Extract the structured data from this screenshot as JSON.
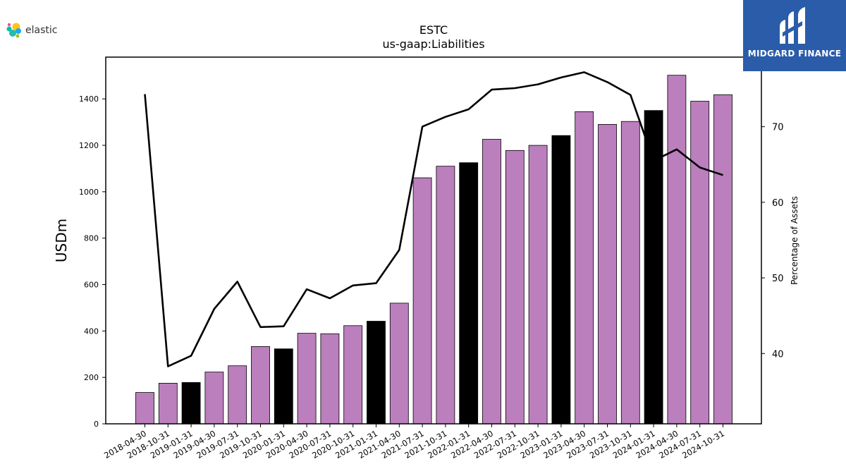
{
  "brand_left": {
    "name": "elastic"
  },
  "brand_right": {
    "name": "MIDGARD FINANCE"
  },
  "chart_data": {
    "type": "bar",
    "title": "ESTC",
    "subtitle": "us-gaap:Liabilities",
    "ylabel": "USDm",
    "y2label": "Percentage of Assets",
    "ylim": [
      0,
      1580
    ],
    "y2lim": [
      30.7,
      79.2
    ],
    "yticks": [
      0,
      200,
      400,
      600,
      800,
      1000,
      1200,
      1400
    ],
    "y2ticks": [
      40,
      50,
      60,
      70
    ],
    "categories": [
      "2018-04-30",
      "2018-10-31",
      "2019-01-31",
      "2019-04-30",
      "2019-07-31",
      "2019-10-31",
      "2020-01-31",
      "2020-04-30",
      "2020-07-31",
      "2020-10-31",
      "2021-01-31",
      "2021-04-30",
      "2021-07-31",
      "2021-10-31",
      "2022-01-31",
      "2022-04-30",
      "2022-07-31",
      "2022-10-31",
      "2023-01-31",
      "2023-04-30",
      "2023-07-31",
      "2023-10-31",
      "2024-01-31",
      "2024-04-30",
      "2024-07-31",
      "2024-10-31"
    ],
    "series": [
      {
        "type": "bar",
        "values": [
          135,
          175,
          178,
          223,
          250,
          333,
          323,
          390,
          388,
          423,
          442,
          520,
          1060,
          1110,
          1125,
          1226,
          1178,
          1200,
          1242,
          1345,
          1290,
          1303,
          1350,
          1502,
          1390,
          1418
        ],
        "highlight": [
          false,
          false,
          true,
          false,
          false,
          false,
          true,
          false,
          false,
          false,
          true,
          false,
          false,
          false,
          true,
          false,
          false,
          false,
          true,
          false,
          false,
          false,
          true,
          false,
          false,
          false
        ],
        "color": "#bb7fbd",
        "highlight_color": "#000000"
      },
      {
        "type": "line",
        "axis": "right",
        "values": [
          74.3,
          38.3,
          39.7,
          45.9,
          49.5,
          43.5,
          43.6,
          48.5,
          47.3,
          49.0,
          49.3,
          53.7,
          70.0,
          71.3,
          72.3,
          74.9,
          75.1,
          75.6,
          76.5,
          77.2,
          75.9,
          74.2,
          65.5,
          67.0,
          64.6,
          63.6
        ],
        "color": "#000000"
      }
    ],
    "grid": false
  }
}
